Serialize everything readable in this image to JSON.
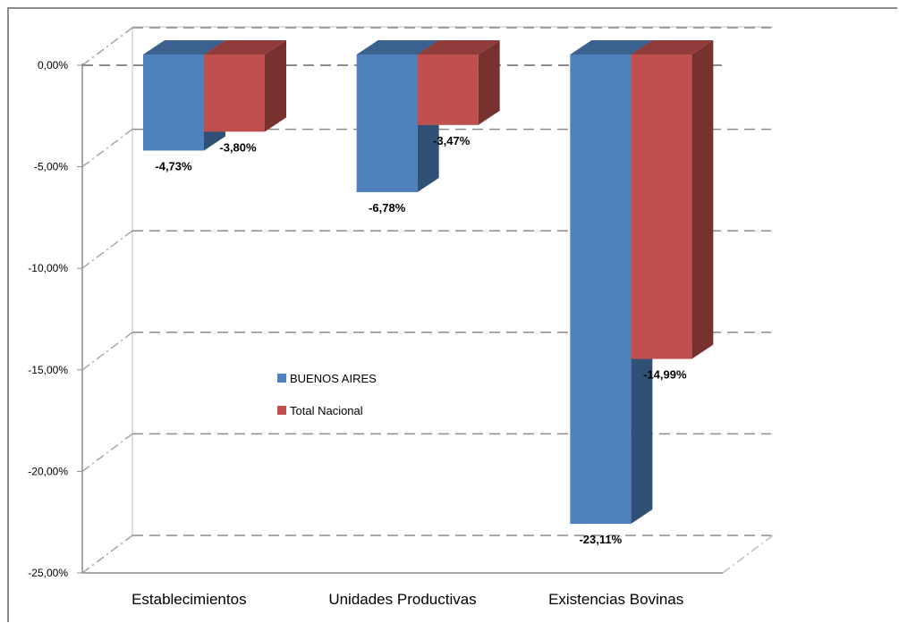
{
  "chart_data": {
    "type": "bar",
    "subtype": "3d-clustered-column",
    "categories": [
      "Establecimientos",
      "Unidades Productivas",
      "Existencias Bovinas"
    ],
    "series": [
      {
        "name": "BUENOS AIRES",
        "values": [
          -4.73,
          -6.78,
          -23.11
        ],
        "labels": [
          "-4,73%",
          "-6,78%",
          "-23,11%"
        ],
        "color": "#4F81BD"
      },
      {
        "name": "Total Nacional",
        "values": [
          -3.8,
          -3.47,
          -14.99
        ],
        "labels": [
          "-3,80%",
          "-3,47%",
          "-14,99%"
        ],
        "color": "#C0504D"
      }
    ],
    "yticks": [
      0,
      -5,
      -10,
      -15,
      -20,
      -25
    ],
    "ytick_labels": [
      "0,00%",
      "-5,00%",
      "-10,00%",
      "-15,00%",
      "-20,00%",
      "-25,00%"
    ],
    "ylim": [
      -25,
      0
    ],
    "grid": true,
    "legend_position": "center-left"
  }
}
